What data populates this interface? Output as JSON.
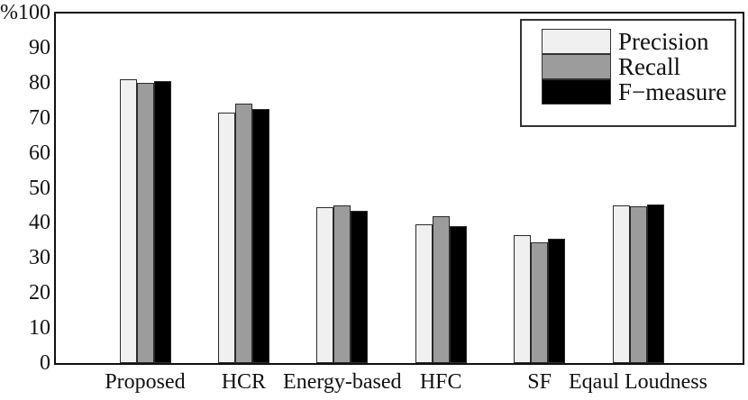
{
  "figure": {
    "background": "#ffffff",
    "frame_color": "#111111"
  },
  "chart_data": {
    "type": "bar",
    "title": "",
    "xlabel": "",
    "ylabel": "%",
    "categories": [
      "Proposed",
      "HCR",
      "Energy-based",
      "HFC",
      "SF",
      "Eqaul Loudness"
    ],
    "series": [
      {
        "name": "Precision",
        "color": "#f0f0f0",
        "values": [
          81,
          71.5,
          44.5,
          39.5,
          36.5,
          45
        ]
      },
      {
        "name": "Recall",
        "color": "#9c9c9c",
        "values": [
          80,
          74,
          45,
          42,
          34.5,
          44.8
        ]
      },
      {
        "name": "F−measure",
        "color": "#000000",
        "values": [
          80.5,
          72.5,
          43.5,
          39,
          35.5,
          45.2
        ]
      }
    ],
    "ylim": [
      0,
      100
    ],
    "yticks": [
      0,
      10,
      20,
      30,
      40,
      50,
      60,
      70,
      80,
      90,
      100
    ],
    "ytick_labels": [
      "0",
      "10",
      "20",
      "30",
      "40",
      "50",
      "60",
      "70",
      "80",
      "90",
      "%100"
    ],
    "bar_edge_color": "#2a2a2a",
    "grid": false,
    "legend_position": "top-right"
  }
}
